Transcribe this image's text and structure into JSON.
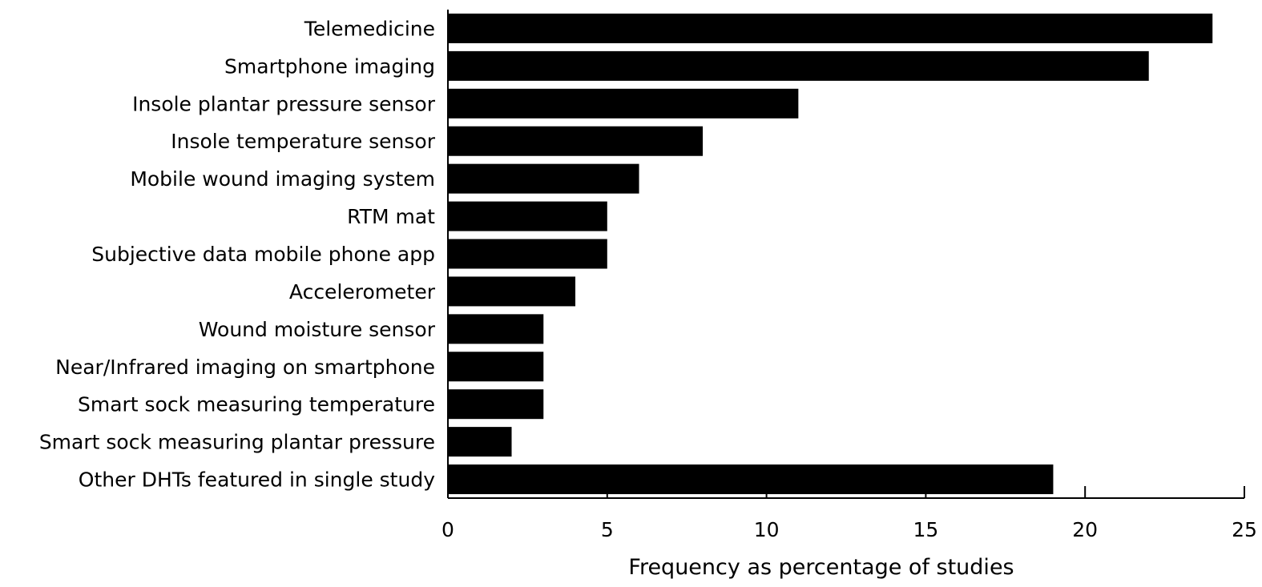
{
  "chart_data": {
    "type": "bar",
    "orientation": "horizontal",
    "title": "",
    "xlabel": "Frequency as percentage of studies",
    "ylabel": "",
    "xlim": [
      0,
      25
    ],
    "xticks": [
      0,
      5,
      10,
      15,
      20,
      25
    ],
    "xtick_labels": [
      "0",
      "5",
      "10",
      "15",
      "20",
      "25"
    ],
    "grid": false,
    "legend": "none",
    "bar_color": "#000000",
    "categories": [
      "Telemedicine",
      "Smartphone imaging",
      "Insole plantar pressure sensor",
      "Insole temperature sensor",
      "Mobile wound imaging system",
      "RTM mat",
      "Subjective data mobile phone app",
      "Accelerometer",
      "Wound moisture sensor",
      "Near/Infrared imaging on smartphone",
      "Smart sock measuring temperature",
      "Smart sock measuring plantar pressure",
      "Other DHTs featured in single study"
    ],
    "values": [
      24,
      22,
      11,
      8,
      6,
      5,
      5,
      4,
      3,
      3,
      3,
      2,
      19
    ]
  }
}
